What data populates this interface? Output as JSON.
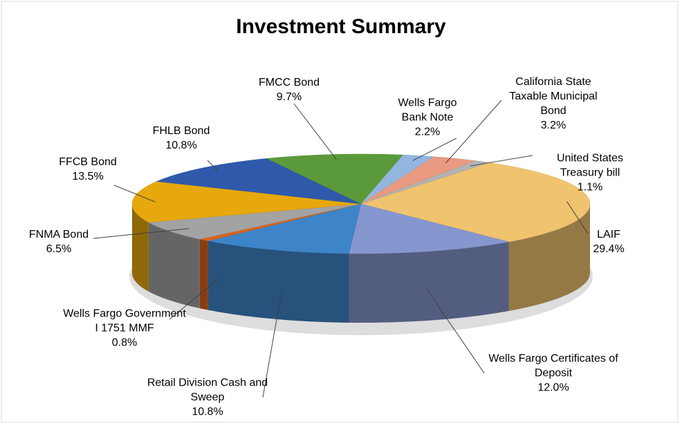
{
  "chart_data": {
    "type": "pie3d",
    "title": "Investment Summary",
    "categories": [
      "LAIF",
      "Wells Fargo Certificates of Deposit",
      "Retail Division Cash and Sweep",
      "Wells Fargo Government I 1751 MMF",
      "FNMA Bond",
      "FFCB Bond",
      "FHLB Bond",
      "FMCC Bond",
      "Wells Fargo Bank Note",
      "California State Taxable Municipal Bond",
      "United States Treasury bill"
    ],
    "values": [
      29.4,
      12.0,
      10.8,
      0.8,
      6.5,
      13.5,
      10.8,
      9.7,
      2.2,
      3.2,
      1.1
    ],
    "value_labels": [
      "29.4%",
      "12.0%",
      "10.8%",
      "0.8%",
      "6.5%",
      "13.5%",
      "10.8%",
      "9.7%",
      "2.2%",
      "3.2%",
      "1.1%"
    ],
    "colors": [
      "#f0c36f",
      "#8696cf",
      "#3d85c8",
      "#d8641c",
      "#a3a3a3",
      "#e6a80c",
      "#2f5aab",
      "#5b9a3b",
      "#93b6e0",
      "#e99a80",
      "#b3b3b3"
    ]
  }
}
